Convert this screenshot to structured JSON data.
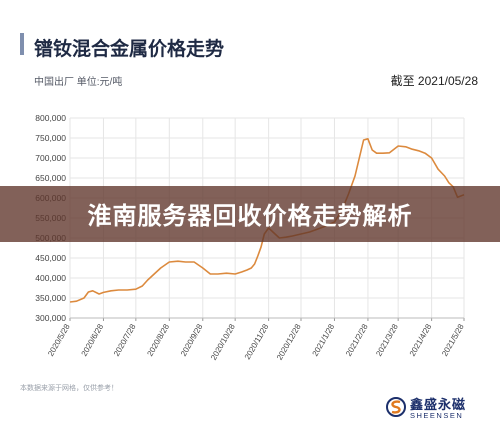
{
  "header": {
    "title": "镨钕混合金属价格走势",
    "subtitle": "中国出厂  单位:元/吨",
    "date_label": "截至 2021/05/28"
  },
  "overlay": {
    "text": "淮南服务器回收价格走势解析"
  },
  "footnote": "本数据来源于网格，仅供参考！",
  "logo": {
    "cn": "鑫盛永磁",
    "en": "SHEENSEN"
  },
  "colors": {
    "line": "#dc8a3e",
    "title_bar": "#7f8fae",
    "grid": "#e6e6e6",
    "overlay": "#5f342a"
  },
  "chart_data": {
    "type": "line",
    "title": "镨钕混合金属价格走势",
    "ylim": [
      300000,
      800000
    ],
    "yticks": [
      "300,000",
      "350,000",
      "400,000",
      "450,000",
      "500,000",
      "550,000",
      "600,000",
      "650,000",
      "700,000",
      "750,000",
      "800,000"
    ],
    "ytick_values": [
      300000,
      350000,
      400000,
      450000,
      500000,
      550000,
      600000,
      650000,
      700000,
      750000,
      800000
    ],
    "xticks": [
      "2020/5/28",
      "2020/6/28",
      "2020/7/28",
      "2020/8/28",
      "2020/9/28",
      "2020/10/28",
      "2020/11/28",
      "2020/12/28",
      "2021/1/28",
      "2021/2/28",
      "2021/3/28",
      "2021/4/28",
      "2021/5/28"
    ],
    "grid": true,
    "series": [
      {
        "x": [
          "2020/5/28",
          "2020/6/3",
          "2020/6/10",
          "2020/6/14",
          "2020/6/18",
          "2020/6/24",
          "2020/6/28",
          "2020/7/5",
          "2020/7/12",
          "2020/7/20",
          "2020/7/28",
          "2020/8/3",
          "2020/8/8",
          "2020/8/14",
          "2020/8/20",
          "2020/8/28",
          "2020/9/5",
          "2020/9/12",
          "2020/9/20",
          "2020/9/28",
          "2020/10/5",
          "2020/10/12",
          "2020/10/20",
          "2020/10/28",
          "2020/11/3",
          "2020/11/8",
          "2020/11/12",
          "2020/11/15",
          "2020/11/18",
          "2020/11/21",
          "2020/11/24",
          "2020/11/28",
          "2020/12/2",
          "2020/12/8",
          "2020/12/14",
          "2020/12/20",
          "2020/12/28",
          "2021/1/5",
          "2021/1/12",
          "2021/1/20",
          "2021/1/28",
          "2021/2/4",
          "2021/2/10",
          "2021/2/16",
          "2021/2/20",
          "2021/2/24",
          "2021/2/28",
          "2021/3/4",
          "2021/3/8",
          "2021/3/14",
          "2021/3/20",
          "2021/3/28",
          "2021/4/4",
          "2021/4/10",
          "2021/4/16",
          "2021/4/22",
          "2021/4/28",
          "2021/5/4",
          "2021/5/10",
          "2021/5/14",
          "2021/5/18",
          "2021/5/22",
          "2021/5/28"
        ],
        "values": [
          340000,
          342000,
          350000,
          365000,
          368000,
          360000,
          364000,
          368000,
          370000,
          370000,
          372000,
          380000,
          395000,
          410000,
          425000,
          440000,
          442000,
          440000,
          440000,
          425000,
          410000,
          410000,
          412000,
          410000,
          415000,
          420000,
          425000,
          435000,
          455000,
          478000,
          510000,
          525000,
          515000,
          500000,
          502000,
          505000,
          510000,
          515000,
          522000,
          530000,
          540000,
          570000,
          610000,
          655000,
          700000,
          745000,
          748000,
          720000,
          712000,
          712000,
          713000,
          730000,
          728000,
          722000,
          718000,
          712000,
          700000,
          672000,
          655000,
          638000,
          628000,
          602000,
          608000
        ]
      }
    ]
  }
}
